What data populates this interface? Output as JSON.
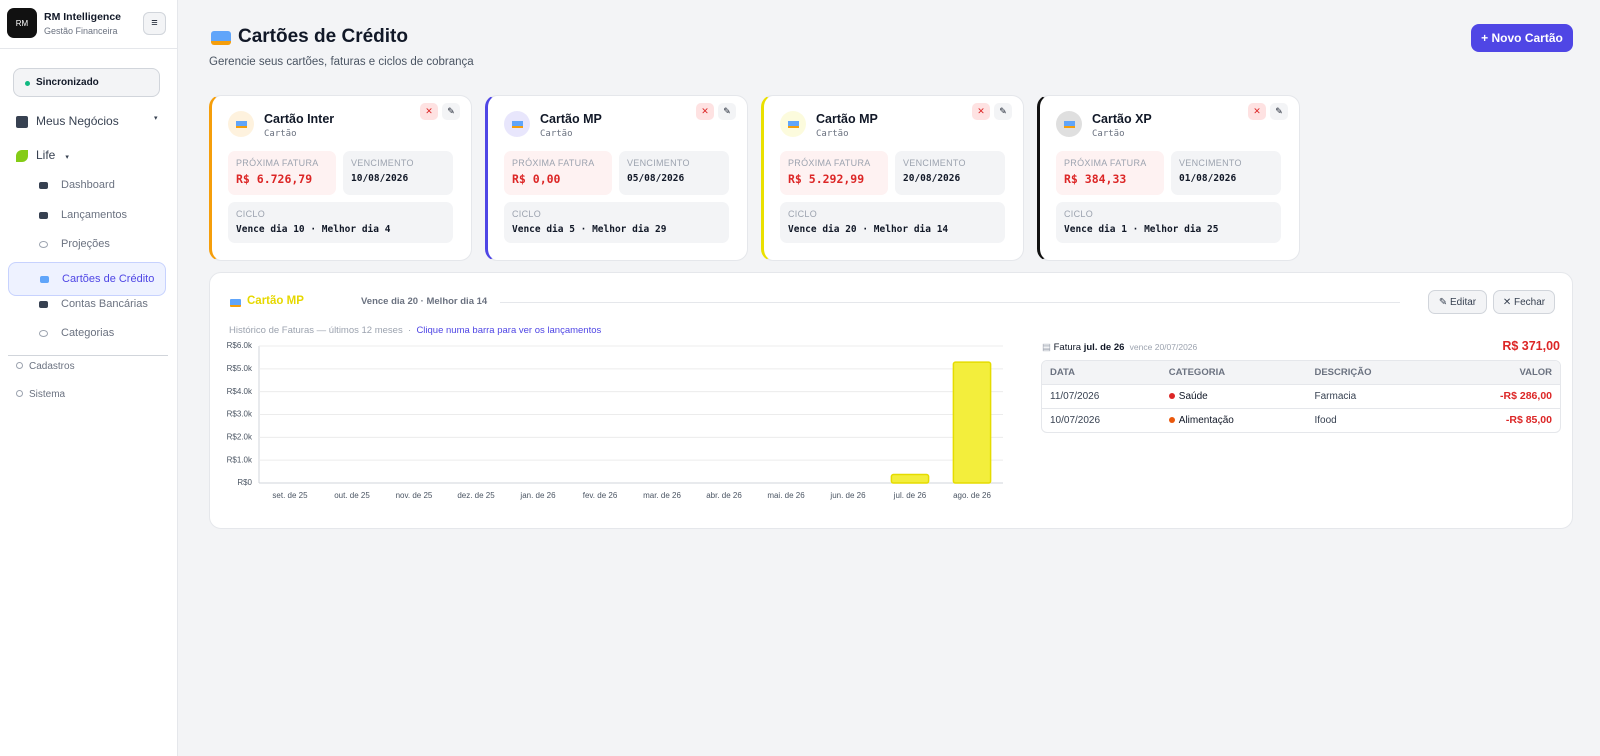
{
  "brand": {
    "logo": "RM",
    "name": "RM Intelligence",
    "subtitle": "Gestão Financeira"
  },
  "sidebar": {
    "status": "Sincronizado",
    "business": "Meus Negócios",
    "life": "Life",
    "items": [
      "Dashboard",
      "Lançamentos",
      "Projeções",
      "Cartões de Crédito",
      "Contas Bancárias",
      "Categorias"
    ],
    "footer": [
      "Cadastros",
      "Sistema"
    ]
  },
  "header": {
    "title": "Cartões de Crédito",
    "subtitle": "Gerencie seus cartões, faturas e ciclos de cobrança",
    "button": "+ Novo Cartão"
  },
  "cards": [
    {
      "name": "Cartão Inter",
      "type": "Cartão",
      "next_label": "PRÓXIMA FATURA",
      "next": "R$ 6.726,79",
      "due_label": "VENCIMENTO",
      "due": "10/08/2026",
      "cycle_label": "CICLO",
      "cycle": "Vence dia 10 · Melhor dia 4",
      "color": "#f59e0b"
    },
    {
      "name": "Cartão MP",
      "type": "Cartão",
      "next_label": "PRÓXIMA FATURA",
      "next": "R$ 0,00",
      "due_label": "VENCIMENTO",
      "due": "05/08/2026",
      "cycle_label": "CICLO",
      "cycle": "Vence dia 5 · Melhor dia 29",
      "color": "#4f46e5"
    },
    {
      "name": "Cartão MP",
      "type": "Cartão",
      "next_label": "PRÓXIMA FATURA",
      "next": "R$ 5.292,99",
      "due_label": "VENCIMENTO",
      "due": "20/08/2026",
      "cycle_label": "CICLO",
      "cycle": "Vence dia 20 · Melhor dia 14",
      "color": "#eae000"
    },
    {
      "name": "Cartão XP",
      "type": "Cartão",
      "next_label": "PRÓXIMA FATURA",
      "next": "R$ 384,33",
      "due_label": "VENCIMENTO",
      "due": "01/08/2026",
      "cycle_label": "CICLO",
      "cycle": "Vence dia 1 · Melhor dia 25",
      "color": "#111111"
    }
  ],
  "detail": {
    "title": "Cartão MP",
    "cycle": "Vence dia 20 · Melhor dia 14",
    "edit": "Editar",
    "close": "Fechar",
    "history": "Histórico de Faturas — últimos 12 meses",
    "hint": "Clique numa barra para ver os lançamentos",
    "invoice": {
      "prefix": "Fatura",
      "month": "jul. de 26",
      "due": "vence 20/07/2026",
      "total": "R$ 371,00"
    },
    "table": {
      "headers": [
        "DATA",
        "CATEGORIA",
        "DESCRIÇÃO",
        "VALOR"
      ],
      "rows": [
        {
          "date": "11/07/2026",
          "category": "Saúde",
          "color": "#dc2626",
          "description": "Farmacia",
          "value": "-R$ 286,00"
        },
        {
          "date": "10/07/2026",
          "category": "Alimentação",
          "color": "#ea580c",
          "description": "Ifood",
          "value": "-R$ 85,00"
        }
      ]
    }
  },
  "chart_data": {
    "type": "bar",
    "color": "#f3ee3c",
    "stroke": "#e5dc00",
    "categories": [
      "set. de 25",
      "out. de 25",
      "nov. de 25",
      "dez. de 25",
      "jan. de 26",
      "fev. de 26",
      "mar. de 26",
      "abr. de 26",
      "mai. de 26",
      "jun. de 26",
      "jul. de 26",
      "ago. de 26"
    ],
    "values": [
      0,
      0,
      0,
      0,
      0,
      0,
      0,
      0,
      0,
      0,
      371,
      5292.99
    ],
    "ylim": [
      0,
      6000
    ],
    "yticks": [
      {
        "value": 0,
        "label": "R$0"
      },
      {
        "value": 1000,
        "label": "R$1.0k"
      },
      {
        "value": 2000,
        "label": "R$2.0k"
      },
      {
        "value": 3000,
        "label": "R$3.0k"
      },
      {
        "value": 4000,
        "label": "R$4.0k"
      },
      {
        "value": 5000,
        "label": "R$5.0k"
      },
      {
        "value": 6000,
        "label": "R$6.0k"
      }
    ],
    "grid": true
  }
}
